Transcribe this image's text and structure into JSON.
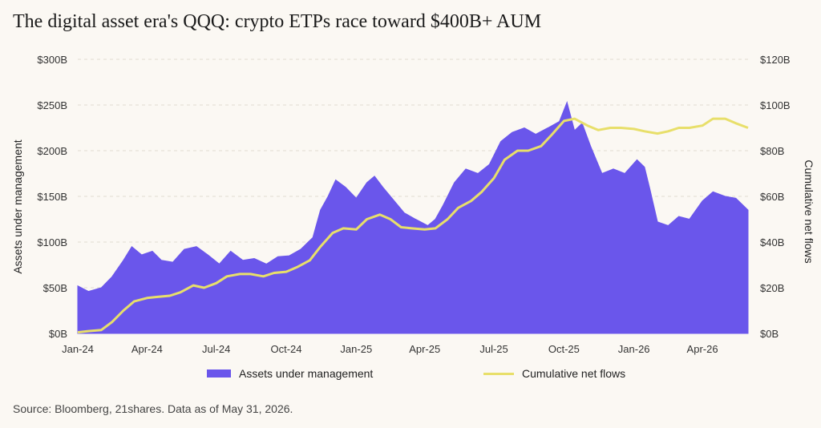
{
  "title": "The digital asset era's QQQ: crypto ETPs race toward $400B+ AUM",
  "source": "Source: Bloomberg, 21shares. Data as of May 31, 2026.",
  "colors": {
    "aum": "#6a56eb",
    "flows": "#e8df6a",
    "grid": "#e2dcd2"
  },
  "chart_data": {
    "type": "area",
    "x_labels": [
      "Jan-24",
      "Apr-24",
      "Jul-24",
      "Oct-24",
      "Jan-25",
      "Apr-25",
      "Jul-25",
      "Oct-25",
      "Jan-26",
      "Apr-26"
    ],
    "x_range": [
      "2024-01-01",
      "2026-05-31"
    ],
    "y_left": {
      "label": "Assets under management",
      "ticks": [
        "$0B",
        "$50B",
        "$100B",
        "$150B",
        "$200B",
        "$250B",
        "$300B"
      ],
      "range": [
        0,
        300
      ]
    },
    "y_right": {
      "label": "Cumulative net flows",
      "ticks": [
        "$0B",
        "$20B",
        "$40B",
        "$60B",
        "$80B",
        "$100B",
        "$120B"
      ],
      "range": [
        0,
        120
      ]
    },
    "grid": true,
    "legend_position": "bottom",
    "series": [
      {
        "name": "Assets under management",
        "type": "area",
        "axis": "left",
        "points": [
          [
            "2024-01-01",
            52
          ],
          [
            "2024-01-15",
            46
          ],
          [
            "2024-02-01",
            50
          ],
          [
            "2024-02-15",
            62
          ],
          [
            "2024-03-01",
            80
          ],
          [
            "2024-03-12",
            95
          ],
          [
            "2024-03-25",
            86
          ],
          [
            "2024-04-08",
            90
          ],
          [
            "2024-04-20",
            80
          ],
          [
            "2024-05-05",
            78
          ],
          [
            "2024-05-20",
            92
          ],
          [
            "2024-06-05",
            95
          ],
          [
            "2024-06-20",
            86
          ],
          [
            "2024-07-05",
            76
          ],
          [
            "2024-07-20",
            90
          ],
          [
            "2024-08-05",
            80
          ],
          [
            "2024-08-20",
            82
          ],
          [
            "2024-09-05",
            76
          ],
          [
            "2024-09-20",
            84
          ],
          [
            "2024-10-05",
            85
          ],
          [
            "2024-10-20",
            92
          ],
          [
            "2024-11-05",
            105
          ],
          [
            "2024-11-15",
            135
          ],
          [
            "2024-11-25",
            150
          ],
          [
            "2024-12-05",
            168
          ],
          [
            "2024-12-18",
            160
          ],
          [
            "2025-01-01",
            148
          ],
          [
            "2025-01-15",
            165
          ],
          [
            "2025-01-25",
            172
          ],
          [
            "2025-02-05",
            160
          ],
          [
            "2025-02-20",
            145
          ],
          [
            "2025-03-05",
            132
          ],
          [
            "2025-03-20",
            125
          ],
          [
            "2025-04-05",
            118
          ],
          [
            "2025-04-15",
            125
          ],
          [
            "2025-04-25",
            140
          ],
          [
            "2025-05-10",
            165
          ],
          [
            "2025-05-25",
            180
          ],
          [
            "2025-06-10",
            175
          ],
          [
            "2025-06-25",
            185
          ],
          [
            "2025-07-10",
            210
          ],
          [
            "2025-07-25",
            220
          ],
          [
            "2025-08-10",
            225
          ],
          [
            "2025-08-25",
            218
          ],
          [
            "2025-09-10",
            225
          ],
          [
            "2025-09-25",
            232
          ],
          [
            "2025-10-05",
            253
          ],
          [
            "2025-10-15",
            222
          ],
          [
            "2025-10-25",
            230
          ],
          [
            "2025-11-05",
            205
          ],
          [
            "2025-11-20",
            175
          ],
          [
            "2025-12-05",
            180
          ],
          [
            "2025-12-20",
            175
          ],
          [
            "2026-01-05",
            190
          ],
          [
            "2026-01-15",
            182
          ],
          [
            "2026-01-22",
            158
          ],
          [
            "2026-02-01",
            122
          ],
          [
            "2026-02-15",
            118
          ],
          [
            "2026-03-01",
            128
          ],
          [
            "2026-03-15",
            125
          ],
          [
            "2026-04-01",
            145
          ],
          [
            "2026-04-15",
            155
          ],
          [
            "2026-05-01",
            150
          ],
          [
            "2026-05-15",
            148
          ],
          [
            "2026-05-31",
            135
          ]
        ]
      },
      {
        "name": "Cumulative net flows",
        "type": "line",
        "axis": "right",
        "points": [
          [
            "2024-01-01",
            0.5
          ],
          [
            "2024-01-15",
            1
          ],
          [
            "2024-02-01",
            1.5
          ],
          [
            "2024-02-15",
            5
          ],
          [
            "2024-03-01",
            10
          ],
          [
            "2024-03-15",
            14
          ],
          [
            "2024-04-01",
            15.5
          ],
          [
            "2024-04-15",
            16
          ],
          [
            "2024-05-01",
            16.5
          ],
          [
            "2024-05-15",
            18
          ],
          [
            "2024-06-01",
            21
          ],
          [
            "2024-06-15",
            20
          ],
          [
            "2024-07-01",
            22
          ],
          [
            "2024-07-15",
            25
          ],
          [
            "2024-08-01",
            26
          ],
          [
            "2024-08-15",
            26
          ],
          [
            "2024-09-01",
            25
          ],
          [
            "2024-09-15",
            26.5
          ],
          [
            "2024-10-01",
            27
          ],
          [
            "2024-10-15",
            29
          ],
          [
            "2024-11-01",
            32
          ],
          [
            "2024-11-15",
            38
          ],
          [
            "2024-12-01",
            44
          ],
          [
            "2024-12-15",
            46
          ],
          [
            "2025-01-01",
            45.5
          ],
          [
            "2025-01-15",
            50
          ],
          [
            "2025-02-01",
            52
          ],
          [
            "2025-02-15",
            50
          ],
          [
            "2025-03-01",
            46.5
          ],
          [
            "2025-03-15",
            46
          ],
          [
            "2025-04-01",
            45.5
          ],
          [
            "2025-04-15",
            46
          ],
          [
            "2025-05-01",
            50
          ],
          [
            "2025-05-15",
            55
          ],
          [
            "2025-06-01",
            58
          ],
          [
            "2025-06-15",
            62
          ],
          [
            "2025-07-01",
            68
          ],
          [
            "2025-07-15",
            76
          ],
          [
            "2025-08-01",
            80
          ],
          [
            "2025-08-15",
            80
          ],
          [
            "2025-09-01",
            82
          ],
          [
            "2025-09-15",
            87
          ],
          [
            "2025-10-01",
            93
          ],
          [
            "2025-10-15",
            94
          ],
          [
            "2025-11-01",
            91
          ],
          [
            "2025-11-15",
            89
          ],
          [
            "2025-12-01",
            90
          ],
          [
            "2025-12-15",
            90
          ],
          [
            "2026-01-01",
            89.5
          ],
          [
            "2026-01-15",
            88.5
          ],
          [
            "2026-02-01",
            87.5
          ],
          [
            "2026-02-15",
            88.5
          ],
          [
            "2026-03-01",
            90
          ],
          [
            "2026-03-15",
            90
          ],
          [
            "2026-04-01",
            91
          ],
          [
            "2026-04-15",
            94
          ],
          [
            "2026-05-01",
            94
          ],
          [
            "2026-05-15",
            92
          ],
          [
            "2026-05-31",
            90
          ]
        ]
      }
    ]
  }
}
